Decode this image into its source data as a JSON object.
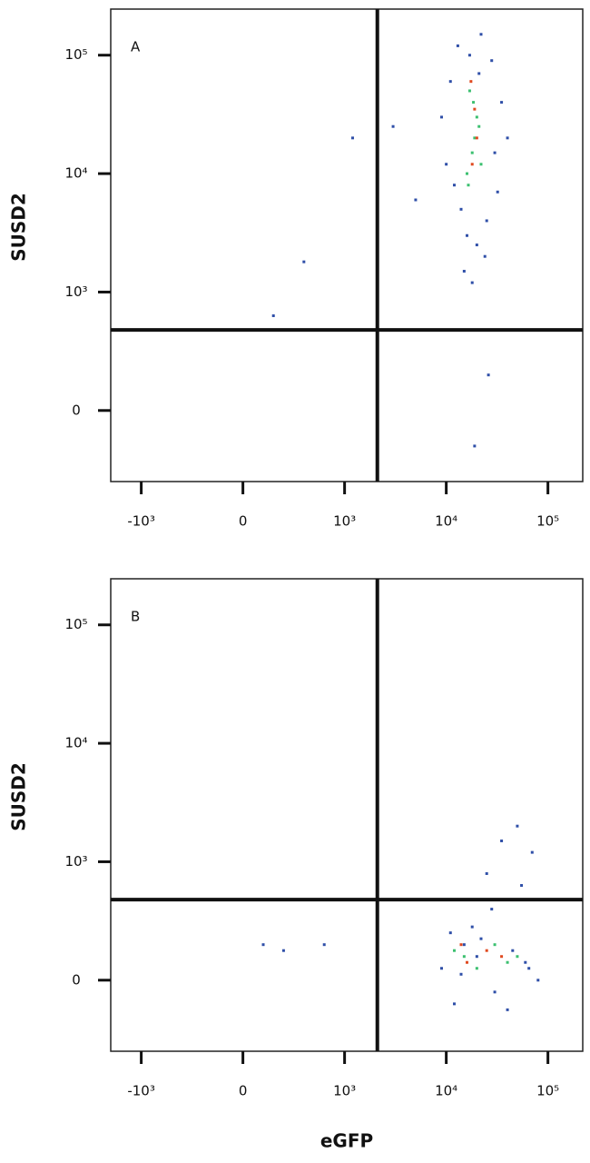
{
  "chart_data": [
    {
      "type": "scatter",
      "panel_label": "A",
      "y_label": "SUSD2",
      "scale": "biexponential",
      "xlim": [
        -1300,
        220000
      ],
      "ylim": [
        -600,
        245000
      ],
      "xticks": [
        {
          "value": -1000,
          "label": "-10³"
        },
        0,
        {
          "value": 1000,
          "label": "10³"
        },
        {
          "value": 10000,
          "label": "10⁴"
        },
        {
          "value": 100000,
          "label": "10⁵"
        }
      ],
      "yticks": [
        0,
        {
          "value": 1000,
          "label": "10³"
        },
        {
          "value": 10000,
          "label": "10⁴"
        },
        {
          "value": 100000,
          "label": "10⁵"
        }
      ],
      "quadrant_x": 2100,
      "quadrant_y": 680,
      "series": [
        {
          "color": "#2f4fa8",
          "x": [
            9000,
            12000,
            14000,
            16000,
            20000,
            25000,
            30000,
            35000,
            11000,
            13000,
            22000,
            28000,
            40000,
            15000,
            18000,
            24000,
            10000,
            32000,
            17000,
            21000,
            1200,
            600,
            300,
            3000,
            5000,
            26000,
            19000
          ],
          "y": [
            30000,
            8000,
            5000,
            3000,
            2500,
            4000,
            15000,
            40000,
            60000,
            120000,
            150000,
            90000,
            20000,
            1500,
            1200,
            2000,
            12000,
            7000,
            100000,
            70000,
            20000,
            1800,
            800,
            25000,
            6000,
            300,
            -300
          ]
        },
        {
          "color": "#3cc070",
          "x": [
            16000,
            18000,
            20000,
            17000,
            19000,
            22000,
            18500,
            21000,
            16500
          ],
          "y": [
            10000,
            15000,
            30000,
            50000,
            20000,
            12000,
            40000,
            25000,
            8000
          ]
        },
        {
          "color": "#e04a20",
          "x": [
            18000,
            19000,
            20000,
            17500
          ],
          "y": [
            12000,
            35000,
            20000,
            60000
          ]
        }
      ]
    },
    {
      "type": "scatter",
      "panel_label": "B",
      "y_label": "SUSD2",
      "x_label": "eGFP",
      "scale": "biexponential",
      "xlim": [
        -1300,
        220000
      ],
      "ylim": [
        -600,
        245000
      ],
      "xticks": [
        {
          "value": -1000,
          "label": "-10³"
        },
        0,
        {
          "value": 1000,
          "label": "10³"
        },
        {
          "value": 10000,
          "label": "10⁴"
        },
        {
          "value": 100000,
          "label": "10⁵"
        }
      ],
      "yticks": [
        0,
        {
          "value": 1000,
          "label": "10³"
        },
        {
          "value": 10000,
          "label": "10⁴"
        },
        {
          "value": 100000,
          "label": "10⁵"
        }
      ],
      "quadrant_x": 2100,
      "quadrant_y": 680,
      "series": [
        {
          "color": "#2f4fa8",
          "x": [
            9000,
            12000,
            15000,
            20000,
            30000,
            45000,
            60000,
            80000,
            11000,
            25000,
            35000,
            50000,
            70000,
            14000,
            40000,
            22000,
            28000,
            55000,
            18000,
            65000,
            200,
            400,
            800
          ],
          "y": [
            100,
            -200,
            300,
            200,
            -100,
            250,
            150,
            0,
            400,
            900,
            1500,
            2000,
            1200,
            50,
            -250,
            350,
            600,
            800,
            450,
            100,
            300,
            250,
            300
          ]
        },
        {
          "color": "#3cc070",
          "x": [
            15000,
            20000,
            30000,
            40000,
            12000,
            50000
          ],
          "y": [
            200,
            100,
            300,
            150,
            250,
            200
          ]
        },
        {
          "color": "#e04a20",
          "x": [
            16000,
            25000,
            35000,
            14000
          ],
          "y": [
            150,
            250,
            200,
            300
          ]
        }
      ]
    }
  ]
}
